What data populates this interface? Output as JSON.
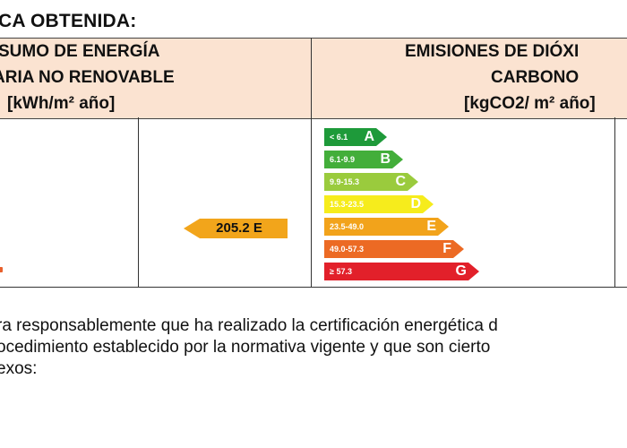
{
  "section_heading": "ICA OBTENIDA:",
  "left_header": {
    "line1": "SUMO DE ENERGÍA",
    "line2": "ARIA NO RENOVABLE",
    "line3": "[kWh/m² año]"
  },
  "right_header": {
    "line1": "EMISIONES DE DIÓXI",
    "line2": "CARBONO",
    "line3": "[kgCO2/ m² año]"
  },
  "energy_pointer": {
    "value": "205.2 E",
    "rating": "E"
  },
  "emission_scale": [
    {
      "range": "< 6.1",
      "letter": "A",
      "color": "#1e9a3a"
    },
    {
      "range": "6.1-9.9",
      "letter": "B",
      "color": "#43ae3a"
    },
    {
      "range": "9.9-15.3",
      "letter": "C",
      "color": "#9acb3d"
    },
    {
      "range": "15.3-23.5",
      "letter": "D",
      "color": "#f6ec1c"
    },
    {
      "range": "23.5-49.0",
      "letter": "E",
      "color": "#f2a31b"
    },
    {
      "range": "49.0-57.3",
      "letter": "F",
      "color": "#ec6a24"
    },
    {
      "range": "≥ 57.3",
      "letter": "G",
      "color": "#e2202a"
    }
  ],
  "declaration": {
    "line1": "ra responsablemente que ha realizado la certificación energética d",
    "line2": "ocedimiento establecido por la normativa vigente y que son cierto",
    "line3": "exos:"
  }
}
